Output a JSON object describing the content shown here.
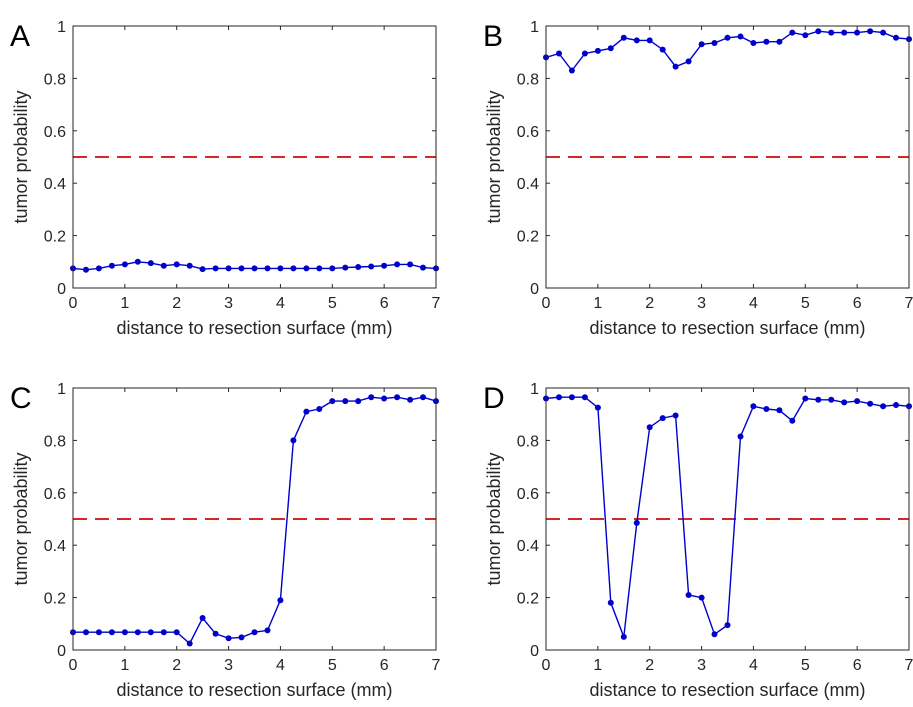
{
  "figure": {
    "xlabel": "distance to resection surface (mm)",
    "ylabel": "tumor probability"
  },
  "colors": {
    "series": "#0000cc",
    "threshold": "#d62728",
    "axes": "#262626"
  },
  "chart_data": [
    {
      "type": "line",
      "panel": "A",
      "xlabel": "distance to resection surface (mm)",
      "ylabel": "tumor probability",
      "xlim": [
        0,
        7
      ],
      "ylim": [
        0,
        1
      ],
      "xticks": [
        0,
        1,
        2,
        3,
        4,
        5,
        6,
        7
      ],
      "yticks": [
        0,
        0.2,
        0.4,
        0.6,
        0.8,
        1
      ],
      "threshold": 0.5,
      "x": [
        0,
        0.25,
        0.5,
        0.75,
        1,
        1.25,
        1.5,
        1.75,
        2,
        2.25,
        2.5,
        2.75,
        3,
        3.25,
        3.5,
        3.75,
        4,
        4.25,
        4.5,
        4.75,
        5,
        5.25,
        5.5,
        5.75,
        6,
        6.25,
        6.5,
        6.75,
        7
      ],
      "values": [
        0.075,
        0.07,
        0.075,
        0.085,
        0.09,
        0.1,
        0.095,
        0.085,
        0.09,
        0.085,
        0.072,
        0.075,
        0.075,
        0.075,
        0.075,
        0.075,
        0.075,
        0.075,
        0.075,
        0.075,
        0.075,
        0.078,
        0.08,
        0.082,
        0.085,
        0.09,
        0.09,
        0.078,
        0.075
      ]
    },
    {
      "type": "line",
      "panel": "B",
      "xlabel": "distance to resection surface (mm)",
      "ylabel": "tumor probability",
      "xlim": [
        0,
        7
      ],
      "ylim": [
        0,
        1
      ],
      "xticks": [
        0,
        1,
        2,
        3,
        4,
        5,
        6,
        7
      ],
      "yticks": [
        0,
        0.2,
        0.4,
        0.6,
        0.8,
        1
      ],
      "threshold": 0.5,
      "x": [
        0,
        0.25,
        0.5,
        0.75,
        1,
        1.25,
        1.5,
        1.75,
        2,
        2.25,
        2.5,
        2.75,
        3,
        3.25,
        3.5,
        3.75,
        4,
        4.25,
        4.5,
        4.75,
        5,
        5.25,
        5.5,
        5.75,
        6,
        6.25,
        6.5,
        6.75,
        7
      ],
      "values": [
        0.88,
        0.895,
        0.83,
        0.895,
        0.905,
        0.915,
        0.955,
        0.945,
        0.945,
        0.91,
        0.845,
        0.865,
        0.93,
        0.935,
        0.955,
        0.96,
        0.935,
        0.94,
        0.94,
        0.975,
        0.965,
        0.98,
        0.975,
        0.975,
        0.975,
        0.98,
        0.975,
        0.955,
        0.95
      ]
    },
    {
      "type": "line",
      "panel": "C",
      "xlabel": "distance to resection surface (mm)",
      "ylabel": "tumor probability",
      "xlim": [
        0,
        7
      ],
      "ylim": [
        0,
        1
      ],
      "xticks": [
        0,
        1,
        2,
        3,
        4,
        5,
        6,
        7
      ],
      "yticks": [
        0,
        0.2,
        0.4,
        0.6,
        0.8,
        1
      ],
      "threshold": 0.5,
      "x": [
        0,
        0.25,
        0.5,
        0.75,
        1,
        1.25,
        1.5,
        1.75,
        2,
        2.25,
        2.5,
        2.75,
        3,
        3.25,
        3.5,
        3.75,
        4,
        4.25,
        4.5,
        4.75,
        5,
        5.25,
        5.5,
        5.75,
        6,
        6.25,
        6.5,
        6.75,
        7
      ],
      "values": [
        0.068,
        0.068,
        0.068,
        0.068,
        0.068,
        0.068,
        0.068,
        0.068,
        0.068,
        0.025,
        0.122,
        0.062,
        0.045,
        0.048,
        0.068,
        0.075,
        0.19,
        0.8,
        0.91,
        0.92,
        0.95,
        0.95,
        0.95,
        0.965,
        0.96,
        0.965,
        0.955,
        0.965,
        0.95
      ]
    },
    {
      "type": "line",
      "panel": "D",
      "xlabel": "distance to resection surface (mm)",
      "ylabel": "tumor probability",
      "xlim": [
        0,
        7
      ],
      "ylim": [
        0,
        1
      ],
      "xticks": [
        0,
        1,
        2,
        3,
        4,
        5,
        6,
        7
      ],
      "yticks": [
        0,
        0.2,
        0.4,
        0.6,
        0.8,
        1
      ],
      "threshold": 0.5,
      "x": [
        0,
        0.25,
        0.5,
        0.75,
        1,
        1.25,
        1.5,
        1.75,
        2,
        2.25,
        2.5,
        2.75,
        3,
        3.25,
        3.5,
        3.75,
        4,
        4.25,
        4.5,
        4.75,
        5,
        5.25,
        5.5,
        5.75,
        6,
        6.25,
        6.5,
        6.75,
        7
      ],
      "values": [
        0.96,
        0.965,
        0.965,
        0.965,
        0.925,
        0.18,
        0.05,
        0.485,
        0.85,
        0.885,
        0.895,
        0.21,
        0.2,
        0.06,
        0.095,
        0.815,
        0.93,
        0.92,
        0.915,
        0.875,
        0.96,
        0.955,
        0.955,
        0.945,
        0.95,
        0.94,
        0.93,
        0.935,
        0.93
      ]
    }
  ]
}
